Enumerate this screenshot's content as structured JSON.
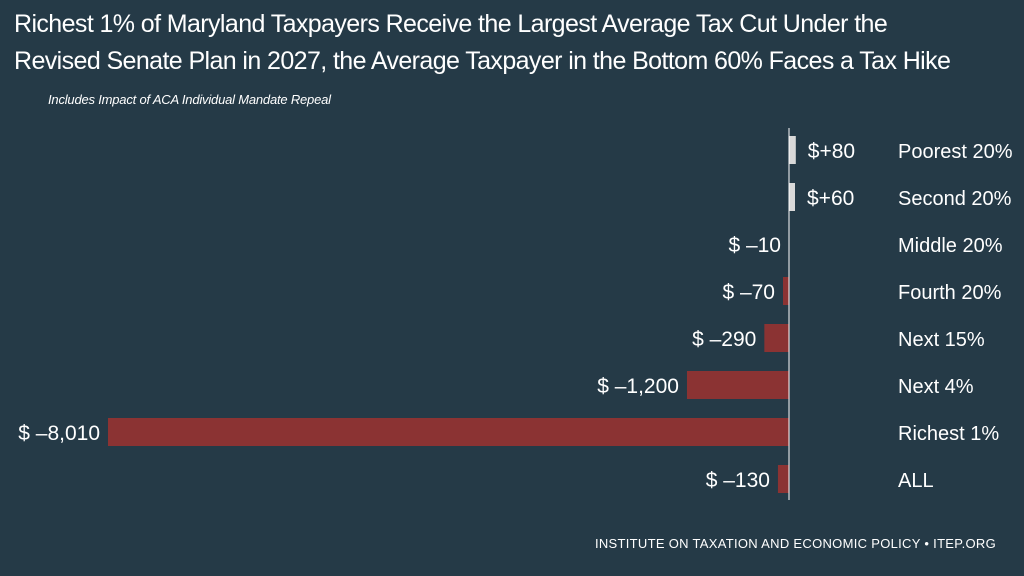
{
  "header": {
    "title_line1": "Richest 1% of Maryland Taxpayers Receive the Largest Average Tax Cut Under the",
    "title_line2": "Revised Senate Plan in 2027, the Average Taxpayer in the Bottom 60% Faces a Tax Hike",
    "subtitle": "Includes Impact of ACA Individual Mandate Repeal"
  },
  "footer": {
    "source": "INSTITUTE ON TAXATION AND ECONOMIC POLICY • ITEP.ORG"
  },
  "colors": {
    "background": "#253a47",
    "increase": "#d9d9d9",
    "decrease": "#8b3333",
    "axis": "#ffffff",
    "text": "#ffffff"
  },
  "chart_data": {
    "type": "bar",
    "orientation": "horizontal",
    "title": "Richest 1% of Maryland Taxpayers Receive the Largest Average Tax Cut Under the Revised Senate Plan in 2027, the Average Taxpayer in the Bottom 60% Faces a Tax Hike",
    "subtitle": "Includes Impact of ACA Individual Mandate Repeal",
    "categories": [
      "Poorest 20%",
      "Second 20%",
      "Middle 20%",
      "Fourth 20%",
      "Next 15%",
      "Next 4%",
      "Richest 1%",
      "ALL"
    ],
    "values": [
      80,
      60,
      -10,
      -70,
      -290,
      -1200,
      -8010,
      -130
    ],
    "labels": [
      "$+80",
      "$+60",
      "$ –10",
      "$ –70",
      "$ –290",
      "$ –1,200",
      "$ –8,010",
      "$ –130"
    ],
    "xlabel": "",
    "ylabel": "",
    "xlim": [
      -8010,
      80
    ],
    "grid": false,
    "legend": "none"
  }
}
